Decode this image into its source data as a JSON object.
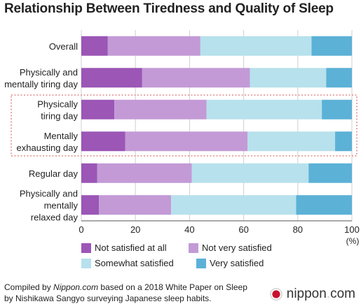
{
  "chart_data": {
    "type": "bar",
    "orientation": "horizontal",
    "stacked": true,
    "title": "Relationship Between Tiredness and Quality of Sleep",
    "categories": [
      [
        "Overall"
      ],
      [
        "Physically and",
        "mentally tiring day"
      ],
      [
        "Physically",
        "tiring day"
      ],
      [
        "Mentally",
        "exhausting day"
      ],
      [
        "Regular day"
      ],
      [
        "Physically and",
        "mentally",
        "relaxed day"
      ]
    ],
    "series": [
      {
        "name": "Not satisfied at all",
        "color": "#9b56b6",
        "values": [
          9.8,
          22.5,
          12.2,
          16.2,
          5.9,
          6.5
        ]
      },
      {
        "name": "Not very satisfied",
        "color": "#c39ad6",
        "values": [
          34.2,
          39.8,
          34.1,
          45.2,
          34.9,
          26.7
        ]
      },
      {
        "name": "Somewhat satisfied",
        "color": "#b7e1ec",
        "values": [
          41.1,
          28.2,
          42.6,
          32.4,
          43.2,
          46.2
        ]
      },
      {
        "name": "Very satisfied",
        "color": "#5cb1d6",
        "values": [
          14.9,
          9.5,
          11.1,
          6.2,
          16.0,
          20.6
        ]
      }
    ],
    "xlim": [
      0,
      100
    ],
    "xticks": [
      "0",
      "20",
      "40",
      "60",
      "80",
      "100"
    ],
    "xunit": "(%)",
    "highlighted_categories": [
      2,
      3
    ]
  },
  "footnote": {
    "line1_prefix": "Compiled by ",
    "line1_em": "Nippon.com",
    "line1_suffix": " based on a 2018 White Paper on Sleep",
    "line2": "by Nishikawa Sangyo surveying Japanese sleep habits."
  },
  "logo": {
    "name": "nippon",
    "dot": ".",
    "tld": "com"
  }
}
